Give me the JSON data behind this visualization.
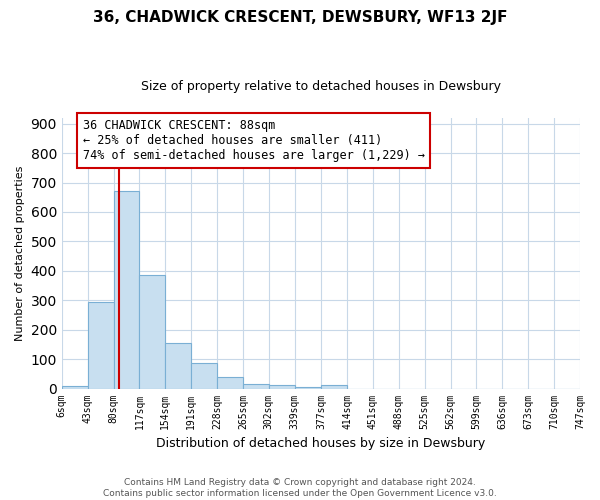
{
  "title": "36, CHADWICK CRESCENT, DEWSBURY, WF13 2JF",
  "subtitle": "Size of property relative to detached houses in Dewsbury",
  "xlabel": "Distribution of detached houses by size in Dewsbury",
  "ylabel": "Number of detached properties",
  "bar_edges": [
    6,
    43,
    80,
    117,
    154,
    191,
    228,
    265,
    302,
    339,
    377,
    414,
    451,
    488,
    525,
    562,
    599,
    636,
    673,
    710,
    747
  ],
  "bar_heights": [
    8,
    293,
    672,
    385,
    155,
    86,
    40,
    15,
    12,
    5,
    11,
    0,
    0,
    0,
    0,
    0,
    0,
    0,
    0,
    0
  ],
  "bar_color": "#c8dff0",
  "bar_edgecolor": "#7aafd4",
  "vline_x": 88,
  "vline_color": "#cc0000",
  "ylim": [
    0,
    920
  ],
  "yticks": [
    0,
    100,
    200,
    300,
    400,
    500,
    600,
    700,
    800,
    900
  ],
  "annotation_title": "36 CHADWICK CRESCENT: 88sqm",
  "annotation_line1": "← 25% of detached houses are smaller (411)",
  "annotation_line2": "74% of semi-detached houses are larger (1,229) →",
  "footer_line1": "Contains HM Land Registry data © Crown copyright and database right 2024.",
  "footer_line2": "Contains public sector information licensed under the Open Government Licence v3.0.",
  "bg_color": "#ffffff",
  "grid_color": "#c8d8e8",
  "tick_labels": [
    "6sqm",
    "43sqm",
    "80sqm",
    "117sqm",
    "154sqm",
    "191sqm",
    "228sqm",
    "265sqm",
    "302sqm",
    "339sqm",
    "377sqm",
    "414sqm",
    "451sqm",
    "488sqm",
    "525sqm",
    "562sqm",
    "599sqm",
    "636sqm",
    "673sqm",
    "710sqm",
    "747sqm"
  ]
}
